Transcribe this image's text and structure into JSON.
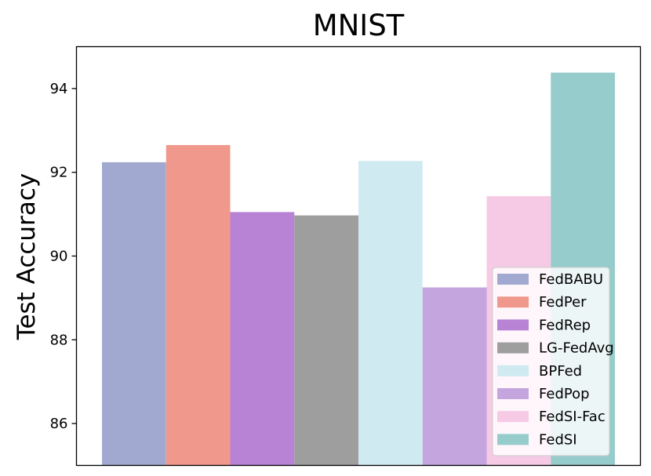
{
  "chart_data": {
    "type": "bar",
    "title": "MNIST",
    "xlabel": "",
    "ylabel": "Test Accuracy",
    "ylim": [
      85.0,
      95.0
    ],
    "yticks": [
      86,
      88,
      90,
      92,
      94
    ],
    "grid": false,
    "legend_position": "lower-right",
    "series": [
      {
        "name": "FedBABU",
        "value": 92.24,
        "color": "#a1a9d0"
      },
      {
        "name": "FedPer",
        "value": 92.65,
        "color": "#f0988c"
      },
      {
        "name": "FedRep",
        "value": 91.05,
        "color": "#b883d4"
      },
      {
        "name": "LG-FedAvg",
        "value": 90.97,
        "color": "#9e9e9e"
      },
      {
        "name": "BPFed",
        "value": 92.27,
        "color": "#cfeaf1"
      },
      {
        "name": "FedPop",
        "value": 89.25,
        "color": "#c4a5de"
      },
      {
        "name": "FedSI-Fac",
        "value": 91.43,
        "color": "#f6cae5"
      },
      {
        "name": "FedSI",
        "value": 94.38,
        "color": "#96cccb"
      }
    ]
  }
}
